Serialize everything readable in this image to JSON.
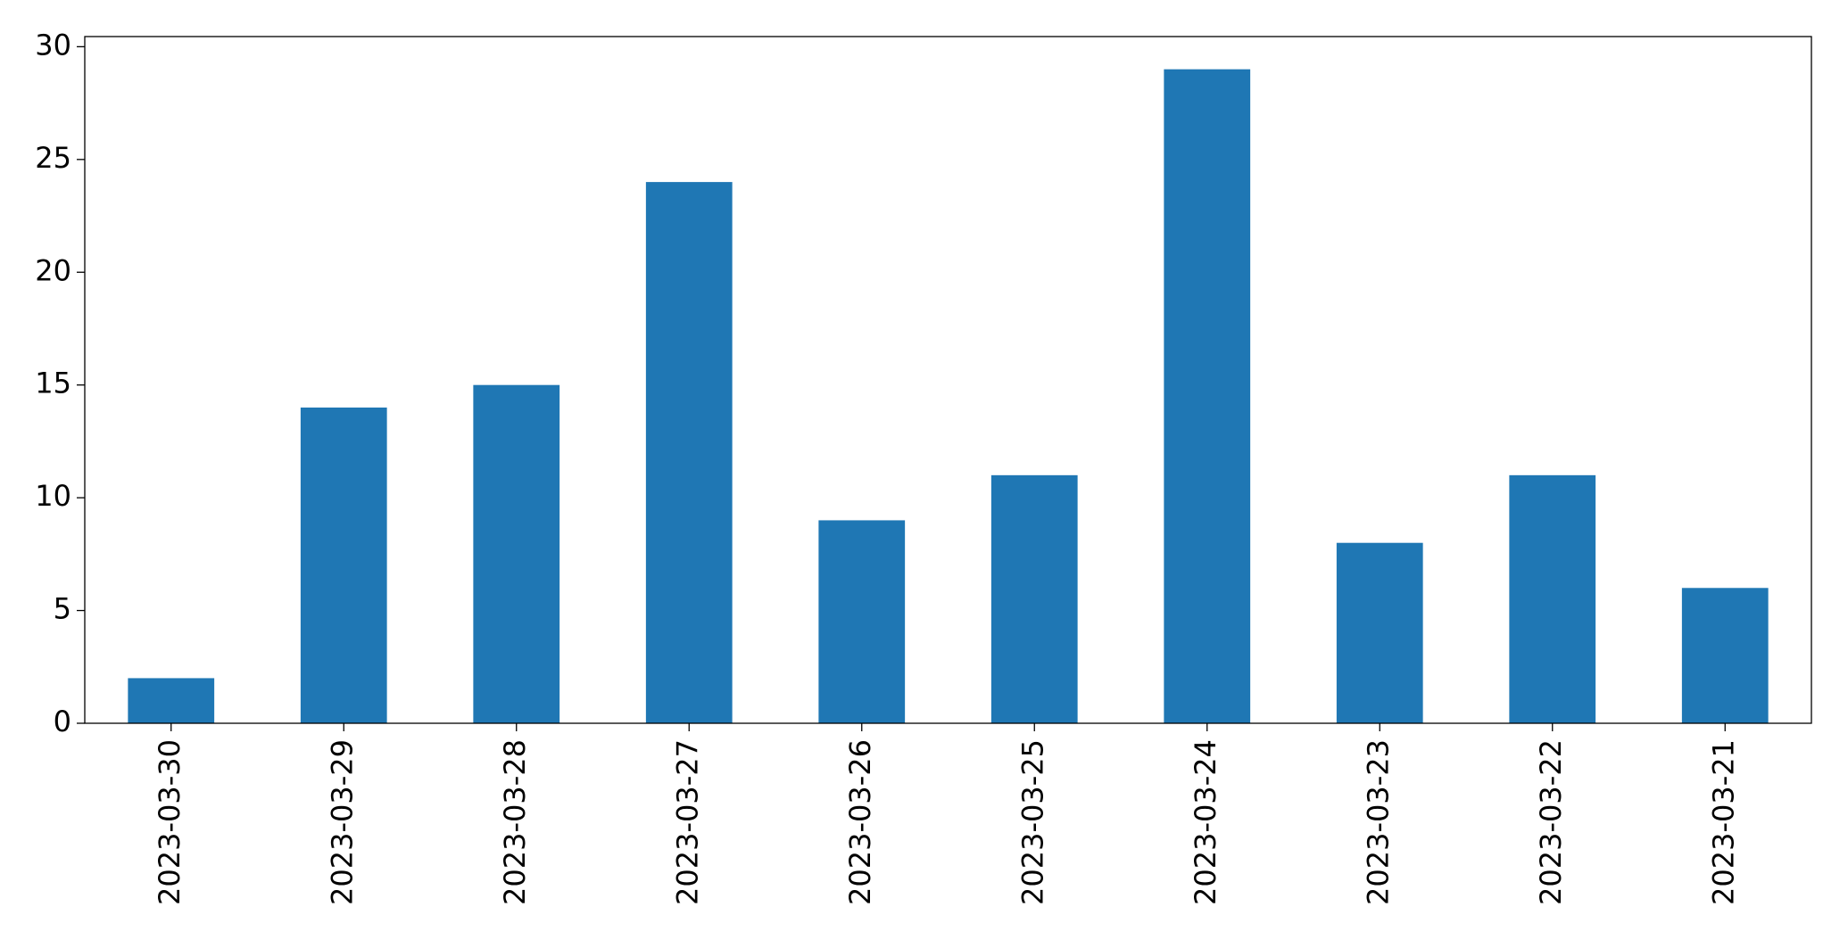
{
  "chart_data": {
    "type": "bar",
    "categories": [
      "2023-03-30",
      "2023-03-29",
      "2023-03-28",
      "2023-03-27",
      "2023-03-26",
      "2023-03-25",
      "2023-03-24",
      "2023-03-23",
      "2023-03-22",
      "2023-03-21"
    ],
    "values": [
      2,
      14,
      15,
      24,
      9,
      11,
      29,
      8,
      11,
      6
    ],
    "color": "#1f77b4",
    "ylim": [
      0,
      30.45
    ],
    "yticks": [
      0,
      5,
      10,
      15,
      20,
      25,
      30
    ],
    "grid": false
  }
}
